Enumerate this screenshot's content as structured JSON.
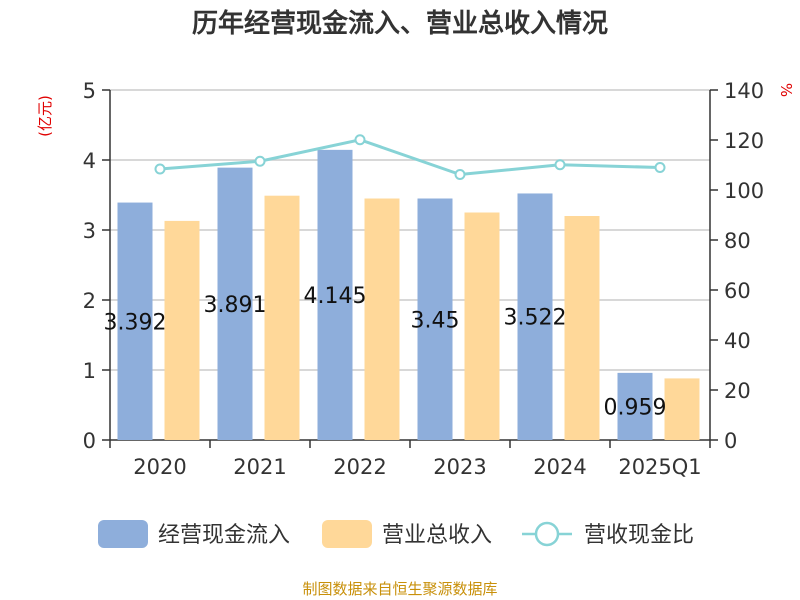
{
  "chart_data": {
    "type": "bar",
    "title": "历年经营现金流入、营业总收入情况",
    "categories": [
      "2020",
      "2021",
      "2022",
      "2023",
      "2024",
      "2025Q1"
    ],
    "series": [
      {
        "name": "经营现金流入",
        "type": "bar",
        "axis": "left",
        "color": "#8eaedb",
        "values": [
          3.392,
          3.891,
          4.145,
          3.45,
          3.522,
          0.959
        ],
        "labels": [
          "3.392",
          "3.891",
          "4.145",
          "3.45",
          "3.522",
          "0.959"
        ]
      },
      {
        "name": "营业总收入",
        "type": "bar",
        "axis": "left",
        "color": "#ffd899",
        "values": [
          3.13,
          3.49,
          3.45,
          3.25,
          3.2,
          0.88
        ]
      },
      {
        "name": "营收现金比",
        "type": "line",
        "axis": "right",
        "color": "#87d3d6",
        "values": [
          108.4,
          111.5,
          120.1,
          106.2,
          110.1,
          109.0
        ]
      }
    ],
    "yleft": {
      "label": "(亿元)",
      "lim": [
        0,
        5
      ],
      "ticks": [
        0,
        1,
        2,
        3,
        4,
        5
      ]
    },
    "yright": {
      "label": "%",
      "lim": [
        0,
        140
      ],
      "ticks": [
        0,
        20,
        40,
        60,
        80,
        100,
        120,
        140
      ]
    },
    "grid": true,
    "legend": "bottom"
  },
  "source": "制图数据来自恒生聚源数据库"
}
